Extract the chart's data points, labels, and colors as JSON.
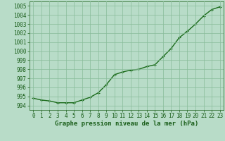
{
  "x": [
    0,
    1,
    2,
    3,
    4,
    5,
    6,
    7,
    8,
    9,
    10,
    11,
    12,
    13,
    14,
    15,
    16,
    17,
    18,
    19,
    20,
    21,
    22,
    23
  ],
  "y": [
    994.8,
    994.6,
    994.5,
    994.3,
    994.3,
    994.3,
    994.6,
    994.9,
    995.4,
    996.3,
    997.4,
    997.7,
    997.9,
    998.0,
    998.3,
    998.5,
    999.4,
    1000.3,
    1001.5,
    1002.2,
    1003.0,
    1003.9,
    1004.6,
    1004.9
  ],
  "line_color": "#1a6b1a",
  "marker": "+",
  "marker_color": "#1a6b1a",
  "bg_color": "#b8dcc8",
  "grid_color": "#88bb99",
  "xlabel": "Graphe pression niveau de la mer (hPa)",
  "xlabel_color": "#1a5e1a",
  "tick_color": "#1a5e1a",
  "ylim": [
    993.5,
    1005.5
  ],
  "xlim": [
    -0.5,
    23.5
  ],
  "yticks": [
    994,
    995,
    996,
    997,
    998,
    999,
    1000,
    1001,
    1002,
    1003,
    1004,
    1005
  ],
  "xticks": [
    0,
    1,
    2,
    3,
    4,
    5,
    6,
    7,
    8,
    9,
    10,
    11,
    12,
    13,
    14,
    15,
    16,
    17,
    18,
    19,
    20,
    21,
    22,
    23
  ],
  "linewidth": 1.0,
  "markersize": 3.5,
  "tick_fontsize": 5.5,
  "xlabel_fontsize": 6.5
}
